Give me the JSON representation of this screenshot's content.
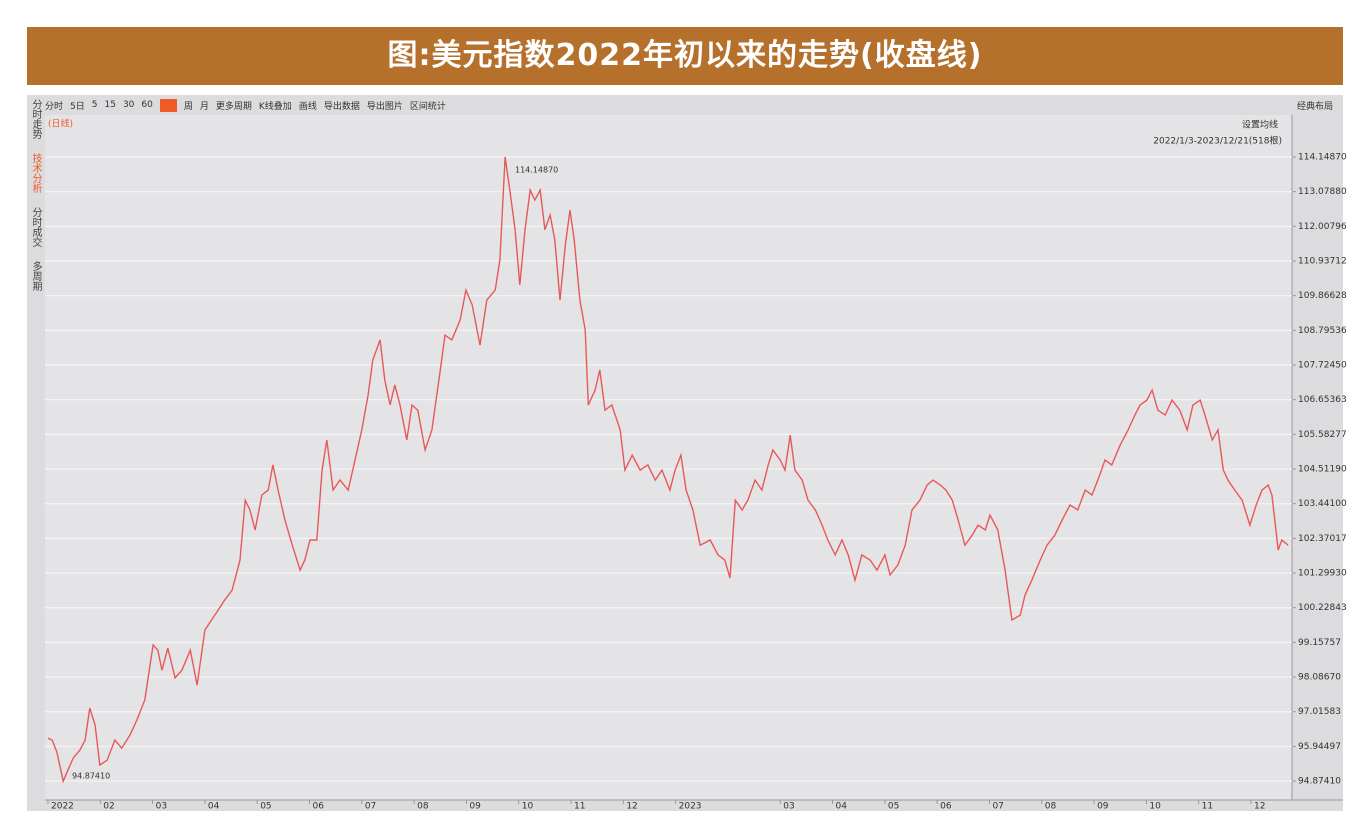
{
  "title": "图:美元指数2022年初以来的走势(收盘线)",
  "toolbar": [
    "分时",
    "5日",
    "5",
    "15",
    "30",
    "60",
    "日",
    "周",
    "月",
    "更多周期",
    "K线叠加",
    "画线",
    "导出数据",
    "导出图片",
    "区间统计"
  ],
  "layout_button": "经典布局",
  "sidebar": [
    "分时走势",
    "技术分析",
    "分时成交",
    "多周期"
  ],
  "period_label": "(日线)",
  "ma_setting": "设置均线",
  "range_label": "2022/1/3-2023/12/21(518根)",
  "chart_data": {
    "type": "line",
    "series": [
      {
        "name": "美元指数",
        "color": "#e8585a",
        "x": [
          0,
          0.08,
          0.17,
          0.29,
          0.38,
          0.48,
          0.61,
          0.71,
          0.8,
          0.9,
          0.99,
          1.13,
          1.28,
          1.41,
          1.57,
          1.7,
          1.85,
          2.01,
          2.1,
          2.18,
          2.29,
          2.43,
          2.56,
          2.72,
          2.85,
          3,
          3.19,
          3.38,
          3.52,
          3.67,
          3.77,
          3.86,
          3.96,
          4.09,
          4.21,
          4.3,
          4.4,
          4.53,
          4.67,
          4.82,
          4.91,
          5.01,
          5.14,
          5.24,
          5.33,
          5.45,
          5.58,
          5.74,
          5.89,
          6,
          6.12,
          6.21,
          6.35,
          6.44,
          6.54,
          6.63,
          6.73,
          6.86,
          6.96,
          7.07,
          7.21,
          7.34,
          7.5,
          7.59,
          7.72,
          7.88,
          7.99,
          8.11,
          8.26,
          8.39,
          8.55,
          8.64,
          8.74,
          8.83,
          8.93,
          9.02,
          9.12,
          9.22,
          9.31,
          9.41,
          9.5,
          9.6,
          9.69,
          9.79,
          9.89,
          9.98,
          10.06,
          10.17,
          10.27,
          10.33,
          10.46,
          10.55,
          10.65,
          10.78,
          10.94,
          11.03,
          11.17,
          11.32,
          11.47,
          11.61,
          11.74,
          11.89,
          11.99,
          12.1,
          12.2,
          12.33,
          12.47,
          12.66,
          12.81,
          12.94,
          13.04,
          13.14,
          13.27,
          13.38,
          13.52,
          13.65,
          13.77,
          13.86,
          14,
          14.09,
          14.19,
          14.28,
          14.42,
          14.53,
          14.67,
          14.8,
          14.91,
          15.05,
          15.18,
          15.3,
          15.43,
          15.56,
          15.72,
          15.85,
          16,
          16.1,
          16.25,
          16.39,
          16.52,
          16.67,
          16.81,
          16.92,
          17.06,
          17.17,
          17.29,
          17.4,
          17.53,
          17.67,
          17.78,
          17.92,
          18.01,
          18.16,
          18.3,
          18.43,
          18.59,
          18.68,
          18.81,
          18.97,
          19.1,
          19.25,
          19.39,
          19.54,
          19.69,
          19.83,
          19.96,
          20.11,
          20.21,
          20.34,
          20.5,
          20.65,
          20.78,
          20.88,
          21.01,
          21.11,
          21.22,
          21.36,
          21.49,
          21.64,
          21.78,
          21.89,
          22.03,
          22.12,
          22.26,
          22.37,
          22.47,
          22.56,
          22.69,
          22.83,
          22.98,
          23.1,
          23.21,
          23.33,
          23.4,
          23.52,
          23.59,
          23.71
        ],
        "values": [
          96.2,
          96.14,
          95.77,
          94.87,
          95.21,
          95.58,
          95.83,
          96.14,
          97.13,
          96.6,
          95.37,
          95.52,
          96.14,
          95.89,
          96.3,
          96.76,
          97.38,
          99.08,
          98.92,
          98.3,
          98.98,
          98.06,
          98.3,
          98.92,
          97.84,
          99.54,
          100,
          100.47,
          100.77,
          101.7,
          103.55,
          103.25,
          102.63,
          103.71,
          103.86,
          104.64,
          103.86,
          102.94,
          102.16,
          101.39,
          101.7,
          102.32,
          102.32,
          104.48,
          105.41,
          103.86,
          104.17,
          103.86,
          104.94,
          105.72,
          106.8,
          107.88,
          108.5,
          107.26,
          106.49,
          107.11,
          106.49,
          105.41,
          106.49,
          106.33,
          105.1,
          105.72,
          107.57,
          108.65,
          108.5,
          109.11,
          110.04,
          109.58,
          108.34,
          109.73,
          110.04,
          110.97,
          114.15,
          113.13,
          111.9,
          110.2,
          111.9,
          113.13,
          112.82,
          113.13,
          111.9,
          112.36,
          111.59,
          109.73,
          111.43,
          112.51,
          111.59,
          109.73,
          108.81,
          106.49,
          106.95,
          107.57,
          106.33,
          106.49,
          105.72,
          104.48,
          104.94,
          104.48,
          104.64,
          104.17,
          104.48,
          103.86,
          104.48,
          104.94,
          103.86,
          103.25,
          102.16,
          102.32,
          101.86,
          101.7,
          101.15,
          103.55,
          103.25,
          103.55,
          104.17,
          103.86,
          104.64,
          105.1,
          104.79,
          104.48,
          105.56,
          104.48,
          104.17,
          103.55,
          103.25,
          102.78,
          102.32,
          101.86,
          102.32,
          101.86,
          101.08,
          101.86,
          101.7,
          101.39,
          101.86,
          101.24,
          101.55,
          102.16,
          103.25,
          103.55,
          104.02,
          104.17,
          104.02,
          103.86,
          103.55,
          102.94,
          102.16,
          102.47,
          102.78,
          102.63,
          103.09,
          102.63,
          101.39,
          99.85,
          100,
          100.62,
          101.08,
          101.7,
          102.16,
          102.47,
          102.94,
          103.4,
          103.25,
          103.86,
          103.71,
          104.33,
          104.79,
          104.64,
          105.25,
          105.72,
          106.18,
          106.49,
          106.64,
          106.95,
          106.33,
          106.18,
          106.64,
          106.33,
          105.72,
          106.49,
          106.64,
          106.18,
          105.41,
          105.72,
          104.48,
          104.17,
          103.86,
          103.55,
          102.78,
          103.4,
          103.86,
          104.02,
          103.71,
          102.01,
          102.32,
          102.16
        ]
      }
    ],
    "annotations": [
      {
        "text": "114.14870"
      },
      {
        "text": "94.87410"
      }
    ],
    "xlim": [
      0,
      23.75
    ],
    "xticks": [
      {
        "value": 0,
        "label": "2022"
      },
      {
        "value": 1,
        "label": "02"
      },
      {
        "value": 2,
        "label": "03"
      },
      {
        "value": 3,
        "label": "04"
      },
      {
        "value": 4,
        "label": "05"
      },
      {
        "value": 5,
        "label": "06"
      },
      {
        "value": 6,
        "label": "07"
      },
      {
        "value": 7,
        "label": "08"
      },
      {
        "value": 8,
        "label": "09"
      },
      {
        "value": 9,
        "label": "10"
      },
      {
        "value": 10,
        "label": "11"
      },
      {
        "value": 11,
        "label": "12"
      },
      {
        "value": 12,
        "label": "2023"
      },
      {
        "value": 14,
        "label": "03"
      },
      {
        "value": 15,
        "label": "04"
      },
      {
        "value": 16,
        "label": "05"
      },
      {
        "value": 17,
        "label": "06"
      },
      {
        "value": 18,
        "label": "07"
      },
      {
        "value": 19,
        "label": "08"
      },
      {
        "value": 20,
        "label": "09"
      },
      {
        "value": 21,
        "label": "10"
      },
      {
        "value": 22,
        "label": "11"
      },
      {
        "value": 23,
        "label": "12"
      }
    ],
    "ylim": [
      94.29,
      115.91
    ],
    "yticks": [
      {
        "value": 114.1487,
        "label": "114.14870"
      },
      {
        "value": 113.0788,
        "label": "113.07880"
      },
      112.00796,
      110.93712,
      109.86628,
      108.79536,
      {
        "value": 107.7245,
        "label": "107.72450"
      },
      106.65363,
      105.58277,
      {
        "value": 104.5119,
        "label": "104.51190"
      },
      {
        "value": 103.441,
        "label": "103.44100"
      },
      102.37017,
      {
        "value": 101.2993,
        "label": "101.29930"
      },
      100.22843,
      99.15757,
      {
        "value": 98.0867,
        "label": "98.08670"
      },
      97.01583,
      95.94497,
      {
        "value": 94.8741,
        "label": "94.87410"
      }
    ],
    "grid": true
  }
}
